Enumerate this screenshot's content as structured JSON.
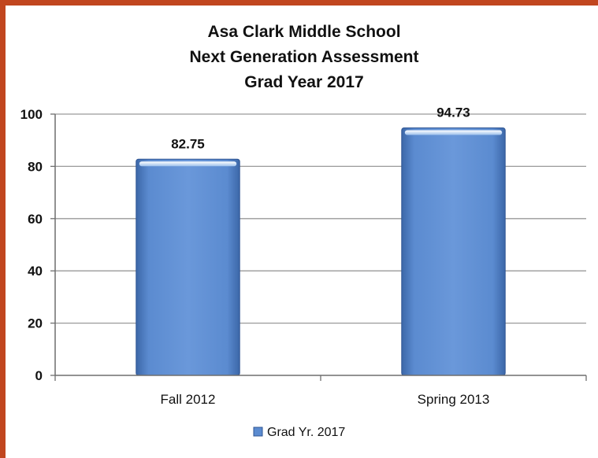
{
  "colors": {
    "frame": "#c1461f",
    "bar_top": "#7fa8dc",
    "bar_main": "#5b8bd0",
    "bar_dark": "#3c67a8",
    "bar_edge": "#2f5593",
    "gridline": "#9a9a9a",
    "axis": "#6e6e6e"
  },
  "chart_data": {
    "type": "bar",
    "title_lines": [
      "Asa Clark Middle School",
      "Next Generation Assessment",
      "Grad Year 2017"
    ],
    "categories": [
      "Fall 2012",
      "Spring 2013"
    ],
    "series": [
      {
        "name": "Grad Yr. 2017",
        "values": [
          82.75,
          94.73
        ],
        "labels": [
          "82.75",
          "94.73"
        ]
      }
    ],
    "ylim": [
      0,
      100
    ],
    "yticks": [
      0,
      20,
      40,
      60,
      80,
      100
    ],
    "xlabel": "",
    "ylabel": "",
    "grid": true,
    "legend": "bottom"
  }
}
